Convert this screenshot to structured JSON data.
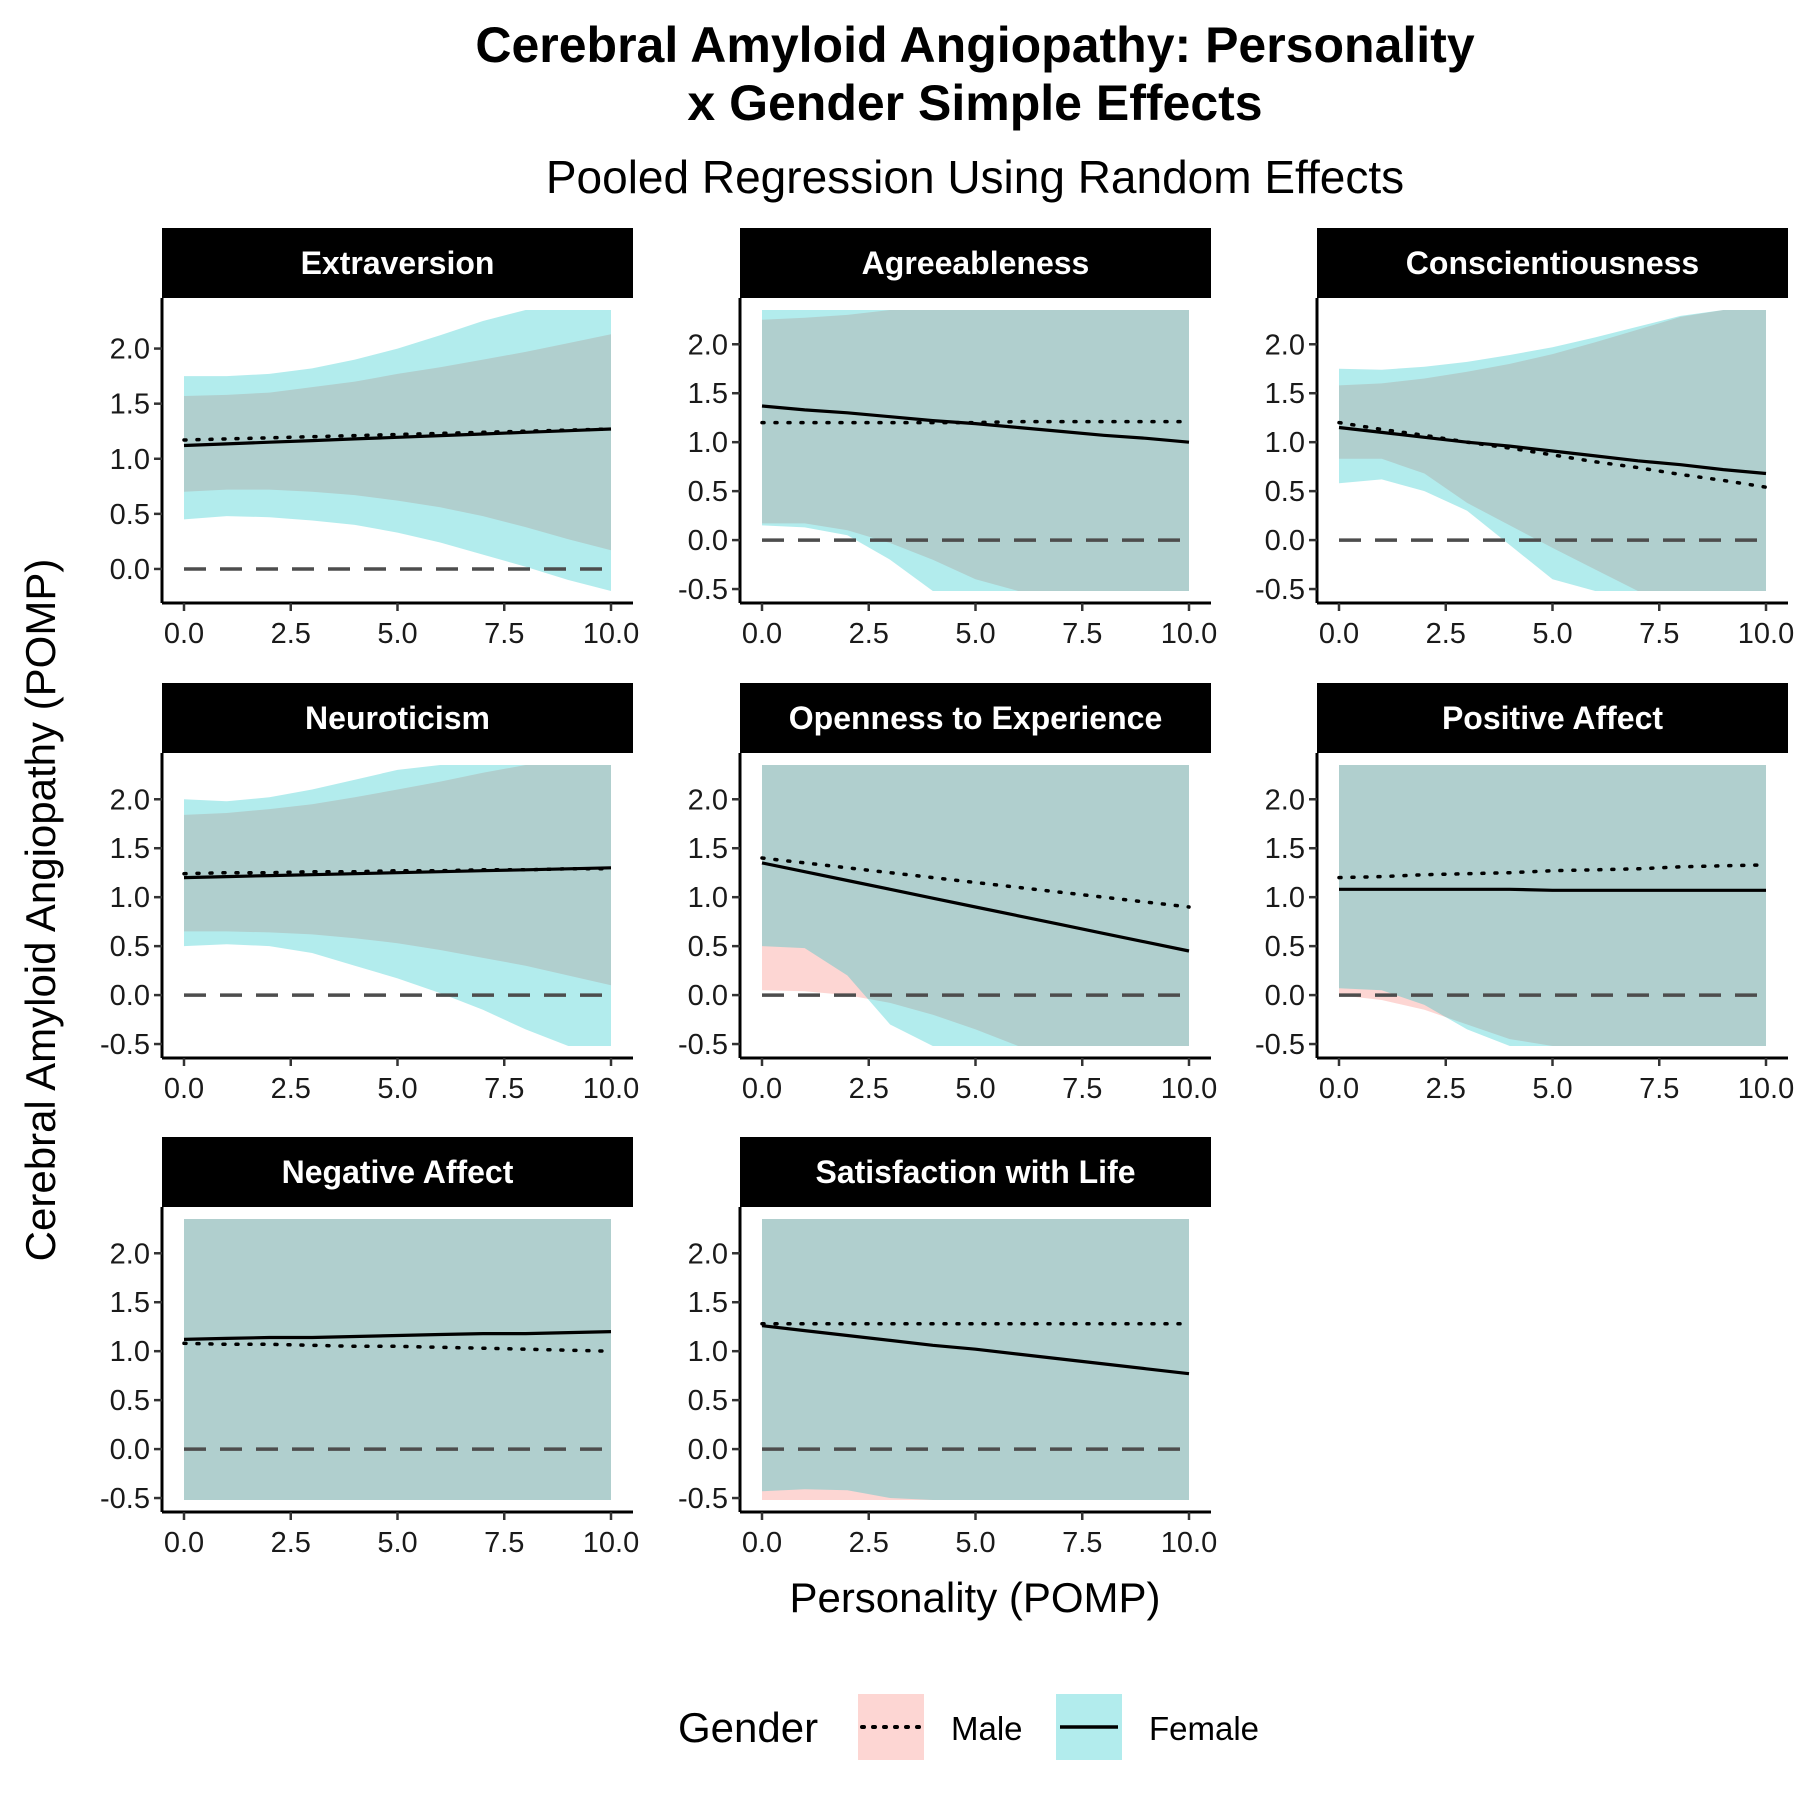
{
  "chart_data": {
    "type": "line",
    "title_line1": "Cerebral Amyloid Angiopathy: Personality",
    "title_line2": "x Gender Simple Effects",
    "subtitle": "Pooled Regression Using Random Effects",
    "xlabel": "Personality (POMP)",
    "ylabel": "Cerebral Amyloid Angiopathy (POMP)",
    "x_ticks": [
      "0.0",
      "2.5",
      "5.0",
      "7.5",
      "10.0"
    ],
    "legend": {
      "title": "Gender",
      "position": "bottom",
      "entries": [
        {
          "label": "Male",
          "linetype": "dotted",
          "fill": "#F8766D"
        },
        {
          "label": "Female",
          "linetype": "solid",
          "fill": "#00BFC4"
        }
      ]
    },
    "reference_line": {
      "y": 0,
      "style": "dashed",
      "color": "#4d4d4d"
    },
    "grid": false,
    "panels": [
      {
        "name": "Extraversion",
        "ylim": [
          -0.2,
          2.35
        ],
        "y_ticks": [
          "0.0",
          "0.5",
          "1.0",
          "1.5",
          "2.0"
        ],
        "x": [
          0,
          1,
          2,
          3,
          4,
          5,
          6,
          7,
          8,
          9,
          10
        ],
        "male_line": [
          1.17,
          1.18,
          1.19,
          1.2,
          1.21,
          1.22,
          1.23,
          1.24,
          1.25,
          1.26,
          1.27
        ],
        "female_line": [
          1.12,
          1.135,
          1.15,
          1.165,
          1.18,
          1.195,
          1.21,
          1.225,
          1.24,
          1.255,
          1.27
        ],
        "male_band": {
          "lower": [
            0.7,
            0.72,
            0.72,
            0.7,
            0.67,
            0.62,
            0.56,
            0.48,
            0.38,
            0.27,
            0.17
          ],
          "upper": [
            1.57,
            1.58,
            1.6,
            1.65,
            1.7,
            1.77,
            1.83,
            1.9,
            1.97,
            2.05,
            2.13
          ]
        },
        "female_band": {
          "lower": [
            0.45,
            0.48,
            0.47,
            0.44,
            0.4,
            0.33,
            0.24,
            0.13,
            0.02,
            -0.1,
            -0.2
          ],
          "upper": [
            1.75,
            1.75,
            1.77,
            1.82,
            1.9,
            2.0,
            2.12,
            2.25,
            2.35,
            2.35,
            2.35
          ]
        }
      },
      {
        "name": "Agreeableness",
        "ylim": [
          -0.52,
          2.35
        ],
        "y_ticks": [
          "-0.5",
          "0.0",
          "0.5",
          "1.0",
          "1.5",
          "2.0"
        ],
        "x": [
          0,
          1,
          2,
          3,
          4,
          5,
          6,
          7,
          8,
          9,
          10
        ],
        "male_line": [
          1.2,
          1.2,
          1.2,
          1.2,
          1.2,
          1.2,
          1.21,
          1.21,
          1.21,
          1.21,
          1.21
        ],
        "female_line": [
          1.37,
          1.33,
          1.3,
          1.26,
          1.22,
          1.19,
          1.15,
          1.11,
          1.07,
          1.04,
          1.0
        ],
        "male_band": {
          "lower": [
            0.17,
            0.17,
            0.1,
            -0.03,
            -0.2,
            -0.4,
            -0.52,
            -0.52,
            -0.52,
            -0.52,
            -0.52
          ],
          "upper": [
            2.25,
            2.27,
            2.3,
            2.35,
            2.35,
            2.35,
            2.35,
            2.35,
            2.35,
            2.35,
            2.35
          ]
        },
        "female_band": {
          "lower": [
            0.15,
            0.13,
            0.05,
            -0.2,
            -0.52,
            -0.52,
            -0.52,
            -0.52,
            -0.52,
            -0.52,
            -0.52
          ],
          "upper": [
            2.35,
            2.35,
            2.35,
            2.35,
            2.35,
            2.35,
            2.35,
            2.35,
            2.35,
            2.35,
            2.35
          ]
        }
      },
      {
        "name": "Conscientiousness",
        "ylim": [
          -0.52,
          2.35
        ],
        "y_ticks": [
          "-0.5",
          "0.0",
          "0.5",
          "1.0",
          "1.5",
          "2.0"
        ],
        "x": [
          0,
          1,
          2,
          3,
          4,
          5,
          6,
          7,
          8,
          9,
          10
        ],
        "male_line": [
          1.2,
          1.13,
          1.07,
          1.0,
          0.94,
          0.87,
          0.8,
          0.74,
          0.67,
          0.61,
          0.54
        ],
        "female_line": [
          1.15,
          1.1,
          1.05,
          1.0,
          0.96,
          0.91,
          0.86,
          0.81,
          0.77,
          0.72,
          0.68
        ],
        "male_band": {
          "lower": [
            0.83,
            0.83,
            0.68,
            0.38,
            0.15,
            -0.08,
            -0.3,
            -0.52,
            -0.52,
            -0.52,
            -0.52
          ],
          "upper": [
            1.58,
            1.6,
            1.65,
            1.72,
            1.8,
            1.9,
            2.02,
            2.15,
            2.28,
            2.35,
            2.35
          ]
        },
        "female_band": {
          "lower": [
            0.58,
            0.62,
            0.5,
            0.3,
            -0.05,
            -0.4,
            -0.52,
            -0.52,
            -0.52,
            -0.52,
            -0.52
          ],
          "upper": [
            1.75,
            1.74,
            1.77,
            1.82,
            1.89,
            1.97,
            2.07,
            2.18,
            2.29,
            2.35,
            2.35
          ]
        }
      },
      {
        "name": "Neuroticism",
        "ylim": [
          -0.52,
          2.35
        ],
        "y_ticks": [
          "-0.5",
          "0.0",
          "0.5",
          "1.0",
          "1.5",
          "2.0"
        ],
        "x": [
          0,
          1,
          2,
          3,
          4,
          5,
          6,
          7,
          8,
          9,
          10
        ],
        "male_line": [
          1.24,
          1.25,
          1.25,
          1.26,
          1.26,
          1.27,
          1.27,
          1.28,
          1.28,
          1.29,
          1.29
        ],
        "female_line": [
          1.2,
          1.21,
          1.22,
          1.23,
          1.24,
          1.25,
          1.26,
          1.27,
          1.28,
          1.29,
          1.3
        ],
        "male_band": {
          "lower": [
            0.65,
            0.65,
            0.64,
            0.62,
            0.58,
            0.53,
            0.46,
            0.38,
            0.3,
            0.2,
            0.1
          ],
          "upper": [
            1.84,
            1.86,
            1.9,
            1.95,
            2.02,
            2.1,
            2.18,
            2.27,
            2.35,
            2.35,
            2.35
          ]
        },
        "female_band": {
          "lower": [
            0.5,
            0.52,
            0.5,
            0.43,
            0.3,
            0.17,
            0.02,
            -0.15,
            -0.35,
            -0.52,
            -0.52
          ],
          "upper": [
            2.0,
            1.98,
            2.02,
            2.1,
            2.2,
            2.3,
            2.35,
            2.35,
            2.35,
            2.35,
            2.35
          ]
        }
      },
      {
        "name": "Openness to Experience",
        "ylim": [
          -0.52,
          2.35
        ],
        "y_ticks": [
          "-0.5",
          "0.0",
          "0.5",
          "1.0",
          "1.5",
          "2.0"
        ],
        "x": [
          0,
          1,
          2,
          3,
          4,
          5,
          6,
          7,
          8,
          9,
          10
        ],
        "male_line": [
          1.4,
          1.35,
          1.3,
          1.25,
          1.2,
          1.15,
          1.1,
          1.05,
          1.0,
          0.95,
          0.9
        ],
        "female_line": [
          1.35,
          1.26,
          1.17,
          1.08,
          0.99,
          0.9,
          0.81,
          0.72,
          0.63,
          0.54,
          0.45
        ],
        "male_band": {
          "lower": [
            0.05,
            0.04,
            0.0,
            -0.08,
            -0.2,
            -0.35,
            -0.52,
            -0.52,
            -0.52,
            -0.52,
            -0.52
          ],
          "upper": [
            2.35,
            2.35,
            2.35,
            2.35,
            2.35,
            2.35,
            2.35,
            2.35,
            2.35,
            2.35,
            2.35
          ]
        },
        "female_band": {
          "lower": [
            0.5,
            0.48,
            0.2,
            -0.3,
            -0.52,
            -0.52,
            -0.52,
            -0.52,
            -0.52,
            -0.52,
            -0.52
          ],
          "upper": [
            2.35,
            2.35,
            2.35,
            2.35,
            2.35,
            2.35,
            2.35,
            2.35,
            2.35,
            2.35,
            2.35
          ]
        }
      },
      {
        "name": "Positive Affect",
        "ylim": [
          -0.52,
          2.35
        ],
        "y_ticks": [
          "-0.5",
          "0.0",
          "0.5",
          "1.0",
          "1.5",
          "2.0"
        ],
        "x": [
          0,
          1,
          2,
          3,
          4,
          5,
          6,
          7,
          8,
          9,
          10
        ],
        "male_line": [
          1.2,
          1.21,
          1.23,
          1.24,
          1.25,
          1.27,
          1.28,
          1.29,
          1.31,
          1.32,
          1.33
        ],
        "female_line": [
          1.08,
          1.08,
          1.08,
          1.08,
          1.08,
          1.07,
          1.07,
          1.07,
          1.07,
          1.07,
          1.07
        ],
        "male_band": {
          "lower": [
            0.0,
            -0.05,
            -0.15,
            -0.3,
            -0.45,
            -0.52,
            -0.52,
            -0.52,
            -0.52,
            -0.52,
            -0.52
          ],
          "upper": [
            2.35,
            2.35,
            2.35,
            2.35,
            2.35,
            2.35,
            2.35,
            2.35,
            2.35,
            2.35,
            2.35
          ]
        },
        "female_band": {
          "lower": [
            0.07,
            0.05,
            -0.1,
            -0.35,
            -0.52,
            -0.52,
            -0.52,
            -0.52,
            -0.52,
            -0.52,
            -0.52
          ],
          "upper": [
            2.35,
            2.35,
            2.35,
            2.35,
            2.35,
            2.35,
            2.35,
            2.35,
            2.35,
            2.35,
            2.35
          ]
        }
      },
      {
        "name": "Negative Affect",
        "ylim": [
          -0.52,
          2.35
        ],
        "y_ticks": [
          "-0.5",
          "0.0",
          "0.5",
          "1.0",
          "1.5",
          "2.0"
        ],
        "x": [
          0,
          1,
          2,
          3,
          4,
          5,
          6,
          7,
          8,
          9,
          10
        ],
        "male_line": [
          1.08,
          1.07,
          1.07,
          1.06,
          1.05,
          1.05,
          1.04,
          1.03,
          1.02,
          1.01,
          1.0
        ],
        "female_line": [
          1.12,
          1.13,
          1.14,
          1.14,
          1.15,
          1.16,
          1.17,
          1.18,
          1.18,
          1.19,
          1.2
        ],
        "male_band": {
          "lower": [
            -0.52,
            -0.52,
            -0.52,
            -0.52,
            -0.52,
            -0.52,
            -0.52,
            -0.52,
            -0.52,
            -0.52,
            -0.52
          ],
          "upper": [
            2.35,
            2.35,
            2.35,
            2.35,
            2.35,
            2.35,
            2.35,
            2.35,
            2.35,
            2.35,
            2.35
          ]
        },
        "female_band": {
          "lower": [
            -0.52,
            -0.52,
            -0.52,
            -0.52,
            -0.52,
            -0.52,
            -0.52,
            -0.52,
            -0.52,
            -0.52,
            -0.52
          ],
          "upper": [
            2.35,
            2.35,
            2.35,
            2.35,
            2.35,
            2.35,
            2.35,
            2.35,
            2.35,
            2.35,
            2.35
          ]
        }
      },
      {
        "name": "Satisfaction with Life",
        "ylim": [
          -0.52,
          2.35
        ],
        "y_ticks": [
          "-0.5",
          "0.0",
          "0.5",
          "1.0",
          "1.5",
          "2.0"
        ],
        "x": [
          0,
          1,
          2,
          3,
          4,
          5,
          6,
          7,
          8,
          9,
          10
        ],
        "male_line": [
          1.28,
          1.28,
          1.28,
          1.28,
          1.28,
          1.28,
          1.28,
          1.28,
          1.28,
          1.28,
          1.28
        ],
        "female_line": [
          1.26,
          1.21,
          1.16,
          1.11,
          1.06,
          1.02,
          0.97,
          0.92,
          0.87,
          0.82,
          0.77
        ],
        "male_band": {
          "lower": [
            -0.52,
            -0.52,
            -0.52,
            -0.52,
            -0.52,
            -0.52,
            -0.52,
            -0.52,
            -0.52,
            -0.52,
            -0.52
          ],
          "upper": [
            2.35,
            2.35,
            2.35,
            2.35,
            2.35,
            2.35,
            2.35,
            2.35,
            2.35,
            2.35,
            2.35
          ]
        },
        "female_band": {
          "lower": [
            -0.43,
            -0.41,
            -0.42,
            -0.5,
            -0.52,
            -0.52,
            -0.52,
            -0.52,
            -0.52,
            -0.52,
            -0.52
          ],
          "upper": [
            2.35,
            2.35,
            2.35,
            2.35,
            2.35,
            2.35,
            2.35,
            2.35,
            2.35,
            2.35,
            2.35
          ]
        }
      }
    ]
  },
  "colors": {
    "male_fill": "#F8766D",
    "female_fill": "#00BFC4",
    "overlap_fill": "#bed8d4",
    "strip_bg": "#000000",
    "line": "#000000",
    "reference": "#4d4d4d"
  }
}
